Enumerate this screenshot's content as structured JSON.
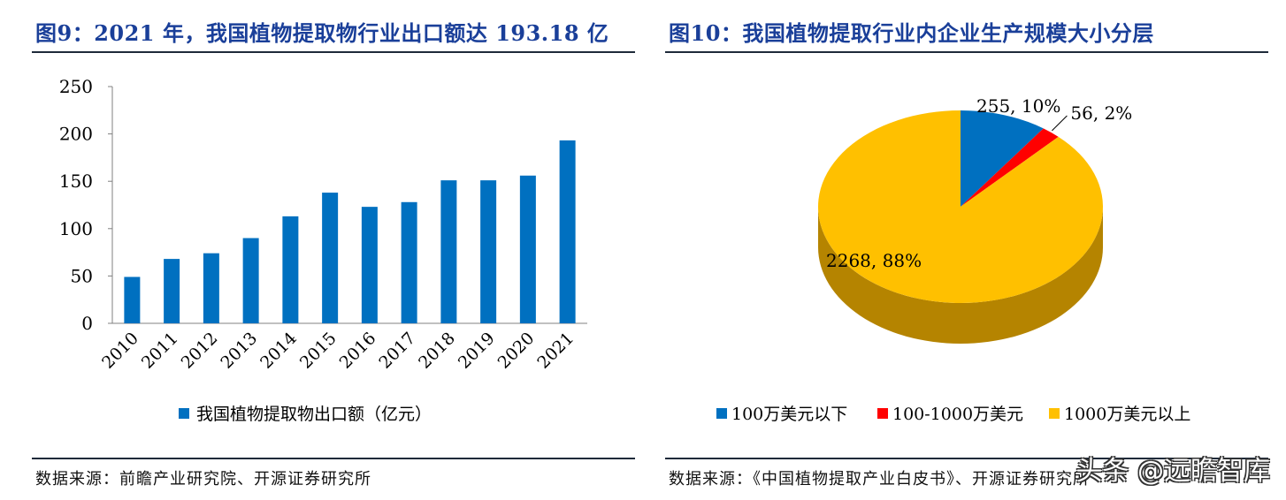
{
  "left": {
    "title": "图9：2021 年，我国植物提取物行业出口额达 193.18 亿",
    "source": "数据来源：前瞻产业研究院、开源证券研究所"
  },
  "right": {
    "title": "图10：我国植物提取行业内企业生产规模大小分层",
    "source": "数据来源：《中国植物提取产业白皮书》、开源证券研究所"
  },
  "watermark": "头条 @远瞻智库",
  "chart_data": [
    {
      "type": "bar",
      "title": "图9：2021 年，我国植物提取物行业出口额达 193.18 亿",
      "categories": [
        "2010",
        "2011",
        "2012",
        "2013",
        "2014",
        "2015",
        "2016",
        "2017",
        "2018",
        "2019",
        "2020",
        "2021"
      ],
      "series": [
        {
          "name": "我国植物提取物出口额（亿元）",
          "values": [
            49,
            68,
            74,
            90,
            113,
            138,
            123,
            128,
            151,
            151,
            156,
            193.18
          ],
          "color": "#0070c0"
        }
      ],
      "ylim": [
        0,
        250
      ],
      "yticks": [
        0,
        50,
        100,
        150,
        200,
        250
      ],
      "xlabel": "",
      "ylabel": "",
      "legend": "bottom",
      "grid": false
    },
    {
      "type": "pie",
      "title": "图10：我国植物提取行业内企业生产规模大小分层",
      "slices": [
        {
          "label": "100万美元以下",
          "value": 255,
          "percent": "10%",
          "data_label": "255, 10%",
          "color": "#0070c0",
          "shade": "#00457a"
        },
        {
          "label": "100-1000万美元",
          "value": 56,
          "percent": "2%",
          "data_label": "56, 2%",
          "color": "#ff0000",
          "shade": "#a30000"
        },
        {
          "label": "1000万美元以上",
          "value": 2268,
          "percent": "88%",
          "data_label": "2268, 88%",
          "color": "#ffc000",
          "shade": "#b58400"
        }
      ],
      "legend": "bottom"
    }
  ]
}
